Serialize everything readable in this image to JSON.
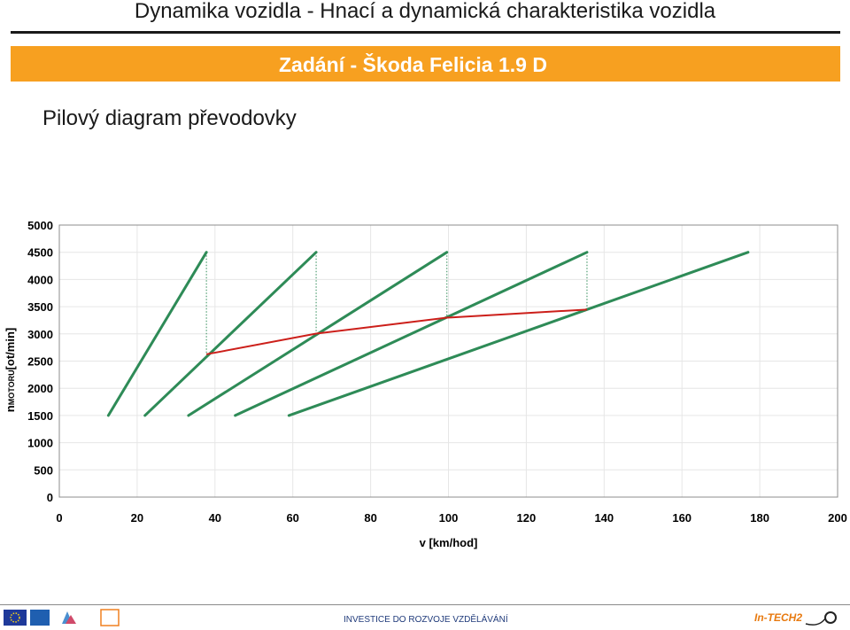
{
  "header": {
    "title": "Dynamika vozidla - Hnací a dynamická charakteristika vozidla",
    "banner": "Zadání - Škoda Felicia 1.9 D",
    "subtitle": "Pilový diagram převodovky"
  },
  "footer": {
    "text": "INVESTICE DO ROZVOJE VZDĚLÁVÁNÍ",
    "brand": "In-TECH2"
  },
  "colors": {
    "accent": "#f7a020",
    "gear_line": "#2e8b57",
    "shift_line": "#cc1f1a",
    "grid": "#e6e6e6",
    "drop_line": "#2e8b57"
  },
  "chart_data": {
    "type": "line",
    "xlabel": "v [km/hod]",
    "ylabel": "nMOTORU[ot/min]",
    "ylabel_main": "n",
    "ylabel_sub": "MOTORU",
    "ylabel_unit": "[ot/min]",
    "xlim": [
      0,
      200
    ],
    "ylim": [
      0,
      5000
    ],
    "x_ticks": [
      0,
      20,
      40,
      60,
      80,
      100,
      120,
      140,
      160,
      180,
      200
    ],
    "y_ticks": [
      0,
      500,
      1000,
      1500,
      2000,
      2500,
      3000,
      3500,
      4000,
      4500,
      5000
    ],
    "grid": true,
    "series": [
      {
        "points": [
          [
            12.6,
            1500
          ],
          [
            37.8,
            4500
          ]
        ]
      },
      {
        "points": [
          [
            22.0,
            1500
          ],
          [
            66.0,
            4500
          ]
        ]
      },
      {
        "points": [
          [
            33.2,
            1500
          ],
          [
            99.6,
            4500
          ]
        ]
      },
      {
        "points": [
          [
            45.2,
            1500
          ],
          [
            135.6,
            4500
          ]
        ]
      },
      {
        "points": [
          [
            59.0,
            1500
          ],
          [
            177.0,
            4500
          ]
        ]
      }
    ],
    "shift_line": [
      [
        37.8,
        2625
      ],
      [
        66.0,
        3005
      ],
      [
        99.6,
        3298
      ],
      [
        135.6,
        3447
      ]
    ],
    "drop_lines": [
      [
        37.8,
        4500,
        2625
      ],
      [
        66.0,
        4500,
        3005
      ],
      [
        99.6,
        4500,
        3298
      ],
      [
        135.6,
        4500,
        3447
      ]
    ]
  }
}
